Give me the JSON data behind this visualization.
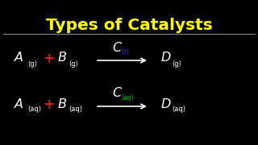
{
  "background_color": "#000000",
  "title": "Types of Catalysts",
  "title_color": "#FFFF00",
  "title_fontsize": 14.5,
  "separator_color": "#888888",
  "eq1": {
    "A_sub": "(g)",
    "B_sub": "(g)",
    "C_label": "C",
    "C_sub": "(s)",
    "D_sub": "(g)",
    "C_color": "#ffffff",
    "C_sub_color": "#3333cc"
  },
  "eq2": {
    "A_sub": "(aq)",
    "B_sub": "(aq)",
    "C_label": "C",
    "C_sub": "(aq)",
    "D_sub": "(aq)",
    "C_color": "#ffffff",
    "C_sub_color": "#00bb00"
  },
  "plus_color": "#cc2222",
  "white": "#ffffff"
}
